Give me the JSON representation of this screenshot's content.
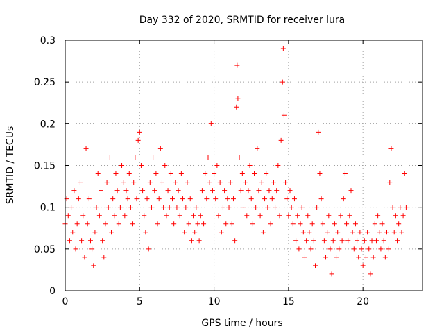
{
  "chart_data": {
    "type": "scatter",
    "title": "Day 332 of 2020, SRMTID for receiver lura",
    "xlabel": "GPS time / hours",
    "ylabel": "SRMTID / TECUs",
    "xlim": [
      0,
      24
    ],
    "ylim": [
      0,
      0.3
    ],
    "xticks": [
      0,
      5,
      10,
      15,
      20
    ],
    "xtick_labels": [
      "0",
      "5",
      "10",
      "15",
      "20"
    ],
    "yticks": [
      0,
      0.05,
      0.1,
      0.15,
      0.2,
      0.25,
      0.3
    ],
    "ytick_labels": [
      "0",
      "0.05",
      "0.1",
      "0.15",
      "0.2",
      "0.25",
      "0.3"
    ],
    "grid": true,
    "marker": "+",
    "color": "#ff0000",
    "series": [
      {
        "name": "SRMTID",
        "points": [
          [
            0.0,
            0.08
          ],
          [
            0.1,
            0.11
          ],
          [
            0.2,
            0.09
          ],
          [
            0.3,
            0.06
          ],
          [
            0.4,
            0.1
          ],
          [
            0.5,
            0.07
          ],
          [
            0.6,
            0.12
          ],
          [
            0.7,
            0.05
          ],
          [
            0.8,
            0.08
          ],
          [
            0.9,
            0.11
          ],
          [
            1.0,
            0.13
          ],
          [
            1.1,
            0.06
          ],
          [
            1.2,
            0.09
          ],
          [
            1.3,
            0.04
          ],
          [
            1.4,
            0.17
          ],
          [
            1.5,
            0.08
          ],
          [
            1.6,
            0.11
          ],
          [
            1.7,
            0.06
          ],
          [
            1.8,
            0.05
          ],
          [
            1.9,
            0.03
          ],
          [
            2.0,
            0.07
          ],
          [
            2.1,
            0.1
          ],
          [
            2.2,
            0.14
          ],
          [
            2.3,
            0.09
          ],
          [
            2.4,
            0.12
          ],
          [
            2.5,
            0.06
          ],
          [
            2.6,
            0.04
          ],
          [
            2.7,
            0.08
          ],
          [
            2.8,
            0.13
          ],
          [
            2.9,
            0.1
          ],
          [
            3.0,
            0.16
          ],
          [
            3.1,
            0.07
          ],
          [
            3.2,
            0.11
          ],
          [
            3.3,
            0.09
          ],
          [
            3.4,
            0.14
          ],
          [
            3.5,
            0.12
          ],
          [
            3.6,
            0.08
          ],
          [
            3.7,
            0.1
          ],
          [
            3.8,
            0.15
          ],
          [
            3.9,
            0.13
          ],
          [
            4.0,
            0.09
          ],
          [
            4.1,
            0.12
          ],
          [
            4.2,
            0.11
          ],
          [
            4.3,
            0.14
          ],
          [
            4.4,
            0.1
          ],
          [
            4.5,
            0.08
          ],
          [
            4.6,
            0.13
          ],
          [
            4.7,
            0.16
          ],
          [
            4.8,
            0.11
          ],
          [
            4.9,
            0.18
          ],
          [
            5.0,
            0.19
          ],
          [
            5.1,
            0.15
          ],
          [
            5.2,
            0.12
          ],
          [
            5.3,
            0.09
          ],
          [
            5.4,
            0.07
          ],
          [
            5.5,
            0.11
          ],
          [
            5.6,
            0.05
          ],
          [
            5.7,
            0.13
          ],
          [
            5.8,
            0.1
          ],
          [
            5.9,
            0.16
          ],
          [
            6.0,
            0.12
          ],
          [
            6.1,
            0.14
          ],
          [
            6.2,
            0.08
          ],
          [
            6.3,
            0.11
          ],
          [
            6.4,
            0.17
          ],
          [
            6.5,
            0.13
          ],
          [
            6.6,
            0.1
          ],
          [
            6.7,
            0.15
          ],
          [
            6.8,
            0.09
          ],
          [
            6.9,
            0.12
          ],
          [
            7.0,
            0.1
          ],
          [
            7.1,
            0.14
          ],
          [
            7.2,
            0.11
          ],
          [
            7.3,
            0.08
          ],
          [
            7.4,
            0.13
          ],
          [
            7.5,
            0.1
          ],
          [
            7.6,
            0.12
          ],
          [
            7.7,
            0.09
          ],
          [
            7.8,
            0.14
          ],
          [
            7.9,
            0.11
          ],
          [
            8.0,
            0.07
          ],
          [
            8.1,
            0.1
          ],
          [
            8.2,
            0.13
          ],
          [
            8.3,
            0.08
          ],
          [
            8.4,
            0.11
          ],
          [
            8.5,
            0.06
          ],
          [
            8.6,
            0.09
          ],
          [
            8.7,
            0.07
          ],
          [
            8.8,
            0.1
          ],
          [
            8.9,
            0.08
          ],
          [
            9.0,
            0.06
          ],
          [
            9.1,
            0.09
          ],
          [
            9.2,
            0.12
          ],
          [
            9.3,
            0.08
          ],
          [
            9.4,
            0.14
          ],
          [
            9.5,
            0.11
          ],
          [
            9.6,
            0.16
          ],
          [
            9.7,
            0.13
          ],
          [
            9.8,
            0.2
          ],
          [
            9.9,
            0.12
          ],
          [
            10.0,
            0.14
          ],
          [
            10.1,
            0.11
          ],
          [
            10.2,
            0.15
          ],
          [
            10.3,
            0.09
          ],
          [
            10.4,
            0.13
          ],
          [
            10.5,
            0.07
          ],
          [
            10.6,
            0.1
          ],
          [
            10.7,
            0.12
          ],
          [
            10.8,
            0.08
          ],
          [
            10.9,
            0.11
          ],
          [
            11.0,
            0.1
          ],
          [
            11.1,
            0.13
          ],
          [
            11.2,
            0.08
          ],
          [
            11.3,
            0.11
          ],
          [
            11.4,
            0.06
          ],
          [
            11.5,
            0.22
          ],
          [
            11.55,
            0.27
          ],
          [
            11.6,
            0.23
          ],
          [
            11.7,
            0.16
          ],
          [
            11.8,
            0.12
          ],
          [
            11.9,
            0.14
          ],
          [
            12.0,
            0.1
          ],
          [
            12.1,
            0.13
          ],
          [
            12.2,
            0.09
          ],
          [
            12.3,
            0.12
          ],
          [
            12.4,
            0.15
          ],
          [
            12.5,
            0.11
          ],
          [
            12.6,
            0.08
          ],
          [
            12.7,
            0.14
          ],
          [
            12.8,
            0.1
          ],
          [
            12.9,
            0.17
          ],
          [
            13.0,
            0.12
          ],
          [
            13.1,
            0.09
          ],
          [
            13.2,
            0.13
          ],
          [
            13.3,
            0.07
          ],
          [
            13.4,
            0.11
          ],
          [
            13.5,
            0.14
          ],
          [
            13.6,
            0.1
          ],
          [
            13.7,
            0.12
          ],
          [
            13.8,
            0.08
          ],
          [
            13.9,
            0.11
          ],
          [
            14.0,
            0.13
          ],
          [
            14.1,
            0.1
          ],
          [
            14.2,
            0.12
          ],
          [
            14.3,
            0.15
          ],
          [
            14.4,
            0.09
          ],
          [
            14.5,
            0.18
          ],
          [
            14.6,
            0.25
          ],
          [
            14.65,
            0.29
          ],
          [
            14.7,
            0.21
          ],
          [
            14.8,
            0.13
          ],
          [
            14.9,
            0.11
          ],
          [
            15.0,
            0.09
          ],
          [
            15.1,
            0.12
          ],
          [
            15.2,
            0.1
          ],
          [
            15.3,
            0.08
          ],
          [
            15.4,
            0.11
          ],
          [
            15.5,
            0.06
          ],
          [
            15.6,
            0.09
          ],
          [
            15.7,
            0.05
          ],
          [
            15.8,
            0.08
          ],
          [
            15.9,
            0.1
          ],
          [
            16.0,
            0.07
          ],
          [
            16.1,
            0.04
          ],
          [
            16.2,
            0.06
          ],
          [
            16.3,
            0.09
          ],
          [
            16.4,
            0.07
          ],
          [
            16.5,
            0.05
          ],
          [
            16.6,
            0.08
          ],
          [
            16.7,
            0.06
          ],
          [
            16.8,
            0.03
          ],
          [
            16.9,
            0.1
          ],
          [
            17.0,
            0.19
          ],
          [
            17.1,
            0.14
          ],
          [
            17.2,
            0.11
          ],
          [
            17.3,
            0.08
          ],
          [
            17.4,
            0.06
          ],
          [
            17.5,
            0.04
          ],
          [
            17.6,
            0.07
          ],
          [
            17.7,
            0.09
          ],
          [
            17.8,
            0.05
          ],
          [
            17.9,
            0.02
          ],
          [
            18.0,
            0.06
          ],
          [
            18.1,
            0.08
          ],
          [
            18.2,
            0.04
          ],
          [
            18.3,
            0.07
          ],
          [
            18.4,
            0.05
          ],
          [
            18.5,
            0.09
          ],
          [
            18.6,
            0.06
          ],
          [
            18.7,
            0.11
          ],
          [
            18.8,
            0.14
          ],
          [
            18.9,
            0.08
          ],
          [
            19.0,
            0.06
          ],
          [
            19.1,
            0.09
          ],
          [
            19.2,
            0.12
          ],
          [
            19.3,
            0.07
          ],
          [
            19.4,
            0.05
          ],
          [
            19.5,
            0.08
          ],
          [
            19.6,
            0.06
          ],
          [
            19.7,
            0.04
          ],
          [
            19.8,
            0.07
          ],
          [
            19.9,
            0.05
          ],
          [
            20.0,
            0.03
          ],
          [
            20.1,
            0.06
          ],
          [
            20.2,
            0.04
          ],
          [
            20.3,
            0.07
          ],
          [
            20.4,
            0.05
          ],
          [
            20.5,
            0.02
          ],
          [
            20.6,
            0.06
          ],
          [
            20.7,
            0.04
          ],
          [
            20.8,
            0.08
          ],
          [
            20.9,
            0.06
          ],
          [
            21.0,
            0.09
          ],
          [
            21.1,
            0.07
          ],
          [
            21.2,
            0.05
          ],
          [
            21.3,
            0.08
          ],
          [
            21.4,
            0.06
          ],
          [
            21.5,
            0.04
          ],
          [
            21.6,
            0.07
          ],
          [
            21.7,
            0.05
          ],
          [
            21.8,
            0.13
          ],
          [
            21.9,
            0.17
          ],
          [
            22.0,
            0.1
          ],
          [
            22.1,
            0.07
          ],
          [
            22.2,
            0.09
          ],
          [
            22.3,
            0.06
          ],
          [
            22.4,
            0.08
          ],
          [
            22.5,
            0.1
          ],
          [
            22.6,
            0.07
          ],
          [
            22.7,
            0.09
          ],
          [
            22.8,
            0.14
          ],
          [
            22.9,
            0.1
          ]
        ]
      }
    ]
  }
}
